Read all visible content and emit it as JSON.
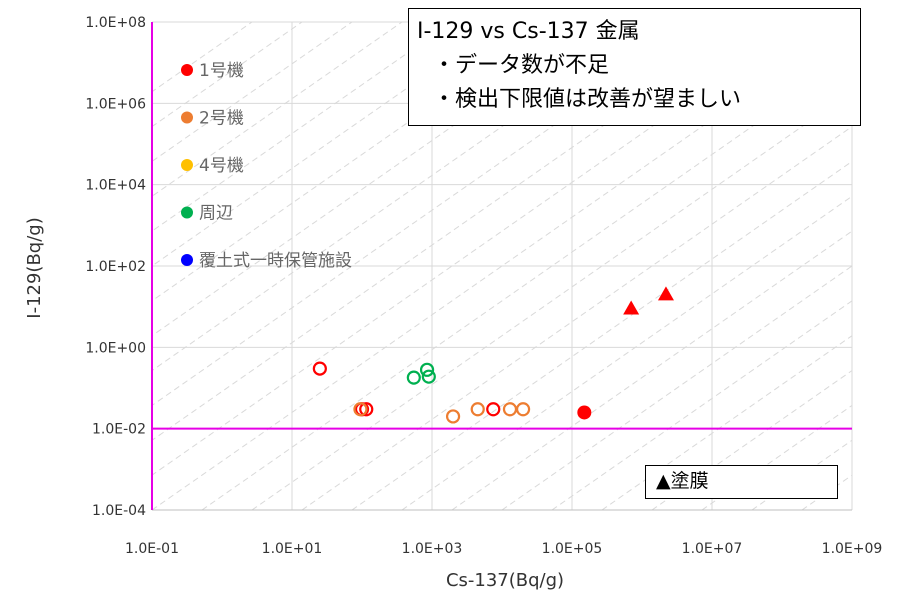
{
  "chart_data": {
    "type": "scatter",
    "title": "I-129 vs Cs-137 金属",
    "annotations": [
      "・データ数が不足",
      "・検出下限値は改善が望ましい"
    ],
    "note_box": "▲塗膜",
    "xlabel": "Cs-137(Bq/g)",
    "ylabel": "I-129(Bq/g)",
    "x_scale": "log",
    "y_scale": "log",
    "xlim": [
      0.1,
      1000000000
    ],
    "ylim": [
      0.0001,
      100000000
    ],
    "x_ticks": [
      "1.0E-01",
      "1.0E+01",
      "1.0E+03",
      "1.0E+05",
      "1.0E+07",
      "1.0E+09"
    ],
    "y_ticks": [
      "1.0E+08",
      "1.0E+06",
      "1.0E+04",
      "1.0E+02",
      "1.0E+00",
      "1.0E-02",
      "1.0E-04"
    ],
    "legend_position": "top-left",
    "legend": [
      {
        "label": "1号機",
        "color": "#ff0000"
      },
      {
        "label": "2号機",
        "color": "#ed7d31"
      },
      {
        "label": "4号機",
        "color": "#ffc000"
      },
      {
        "label": "周辺",
        "color": "#00b050"
      },
      {
        "label": "覆土式一時保管施設",
        "color": "#0000ff"
      }
    ],
    "reference_lines": {
      "horizontal_y": 0.01,
      "vertical_x": 0.1,
      "color": "#e600e6"
    },
    "series": [
      {
        "name": "1号機",
        "color": "#ff0000",
        "points": [
          {
            "x": 25,
            "y": 0.3,
            "marker": "open-circle"
          },
          {
            "x": 100,
            "y": 0.03,
            "marker": "open-circle"
          },
          {
            "x": 115,
            "y": 0.03,
            "marker": "open-circle"
          },
          {
            "x": 7500,
            "y": 0.03,
            "marker": "open-circle"
          },
          {
            "x": 150000,
            "y": 0.025,
            "marker": "filled-circle"
          },
          {
            "x": 700000,
            "y": 9,
            "marker": "filled-triangle"
          },
          {
            "x": 2200000,
            "y": 20,
            "marker": "filled-triangle"
          }
        ]
      },
      {
        "name": "2号機",
        "color": "#ed7d31",
        "points": [
          {
            "x": 95,
            "y": 0.03,
            "marker": "open-circle"
          },
          {
            "x": 2000,
            "y": 0.02,
            "marker": "open-circle"
          },
          {
            "x": 4500,
            "y": 0.03,
            "marker": "open-circle"
          },
          {
            "x": 13000,
            "y": 0.03,
            "marker": "open-circle"
          },
          {
            "x": 20000,
            "y": 0.03,
            "marker": "open-circle"
          }
        ]
      },
      {
        "name": "周辺",
        "color": "#00b050",
        "points": [
          {
            "x": 550,
            "y": 0.18,
            "marker": "open-circle"
          },
          {
            "x": 850,
            "y": 0.28,
            "marker": "open-circle"
          },
          {
            "x": 900,
            "y": 0.19,
            "marker": "open-circle"
          }
        ]
      }
    ]
  }
}
